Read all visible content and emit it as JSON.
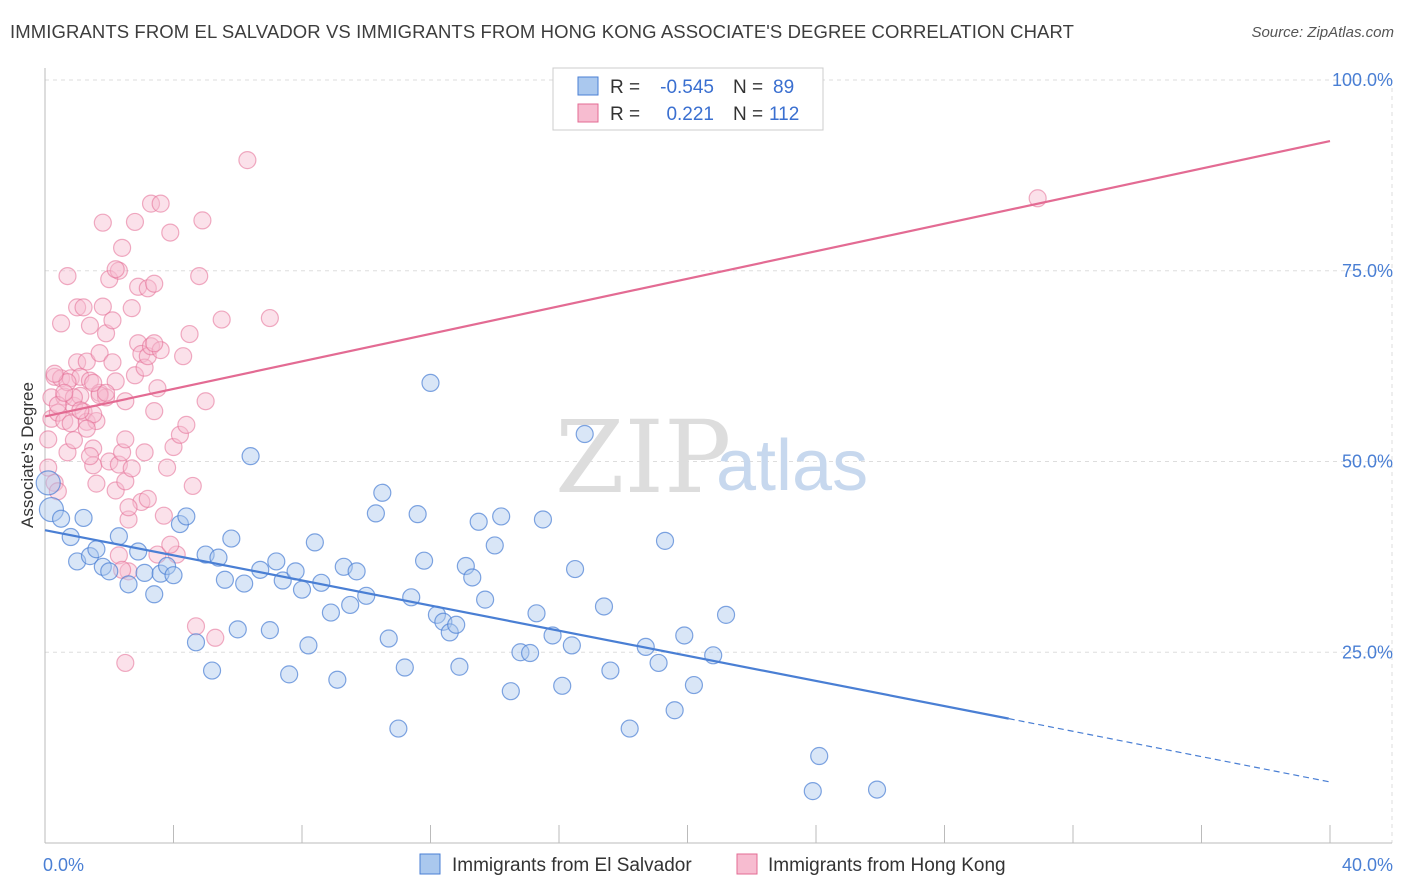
{
  "title": "IMMIGRANTS FROM EL SALVADOR VS IMMIGRANTS FROM HONG KONG ASSOCIATE'S DEGREE CORRELATION CHART",
  "source": "Source: ZipAtlas.com",
  "watermark": {
    "zip": "ZIP",
    "atlas": "atlas"
  },
  "colors": {
    "blue": "#4a7fd4",
    "blue_fill": "#aac8ee",
    "pink": "#e36b93",
    "pink_fill": "#f7bcd0",
    "grid": "#dddddd"
  },
  "legend": {
    "rows": [
      {
        "r_label": "R =",
        "r_value": "-0.545",
        "n_label": "N =",
        "n_value": "89"
      },
      {
        "r_label": "R =",
        "r_value": "0.221",
        "n_label": "N =",
        "n_value": "112"
      }
    ]
  },
  "bottom_legend": [
    "Immigrants from El Salvador",
    "Immigrants from Hong Kong"
  ],
  "chart_data": {
    "type": "scatter",
    "title": "IMMIGRANTS FROM EL SALVADOR VS IMMIGRANTS FROM HONG KONG ASSOCIATE'S DEGREE CORRELATION CHART",
    "xlabel": "",
    "ylabel": "Associate's Degree",
    "xlim": [
      0,
      40
    ],
    "ylim": [
      0,
      100
    ],
    "x_tick_labels": [
      "0.0%",
      "40.0%"
    ],
    "y_ticks": [
      25,
      50,
      75,
      100
    ],
    "y_tick_labels": [
      "25.0%",
      "50.0%",
      "75.0%",
      "100.0%"
    ],
    "grid": true,
    "legend_position": "top-center",
    "series": [
      {
        "name": "Immigrants from El Salvador",
        "color": "#4a7fd4",
        "trend": {
          "x0": 0,
          "y0": 41.0,
          "x1": 30.0,
          "y1": 16.3,
          "dash_to_x": 40,
          "dash_to_y": 8.0
        },
        "points": [
          [
            0.1,
            47.2
          ],
          [
            0.2,
            43.7
          ],
          [
            0.5,
            42.5
          ],
          [
            0.8,
            40.1
          ],
          [
            1.0,
            36.9
          ],
          [
            1.2,
            42.6
          ],
          [
            1.4,
            37.6
          ],
          [
            1.6,
            38.5
          ],
          [
            1.8,
            36.2
          ],
          [
            2.0,
            35.6
          ],
          [
            2.3,
            40.2
          ],
          [
            2.6,
            33.9
          ],
          [
            2.9,
            38.2
          ],
          [
            3.1,
            35.4
          ],
          [
            3.4,
            32.6
          ],
          [
            3.6,
            35.3
          ],
          [
            3.8,
            36.3
          ],
          [
            4.0,
            35.1
          ],
          [
            4.2,
            41.8
          ],
          [
            4.4,
            42.8
          ],
          [
            4.7,
            26.3
          ],
          [
            5.0,
            37.8
          ],
          [
            5.2,
            22.6
          ],
          [
            5.4,
            37.4
          ],
          [
            5.6,
            34.5
          ],
          [
            5.8,
            39.9
          ],
          [
            6.0,
            28.0
          ],
          [
            6.2,
            34.0
          ],
          [
            6.4,
            50.7
          ],
          [
            6.7,
            35.8
          ],
          [
            7.0,
            27.9
          ],
          [
            7.2,
            36.9
          ],
          [
            7.4,
            34.4
          ],
          [
            7.6,
            22.1
          ],
          [
            7.8,
            35.6
          ],
          [
            8.0,
            33.2
          ],
          [
            8.2,
            25.9
          ],
          [
            8.4,
            39.4
          ],
          [
            8.6,
            34.1
          ],
          [
            8.9,
            30.2
          ],
          [
            9.1,
            21.4
          ],
          [
            9.3,
            36.2
          ],
          [
            9.5,
            31.2
          ],
          [
            9.7,
            35.6
          ],
          [
            10.0,
            32.4
          ],
          [
            10.3,
            43.2
          ],
          [
            10.5,
            45.9
          ],
          [
            10.7,
            26.8
          ],
          [
            11.0,
            15.0
          ],
          [
            11.2,
            23.0
          ],
          [
            11.4,
            32.2
          ],
          [
            11.6,
            43.1
          ],
          [
            11.8,
            37.0
          ],
          [
            12.0,
            60.3
          ],
          [
            12.2,
            29.9
          ],
          [
            12.4,
            29.0
          ],
          [
            12.6,
            27.6
          ],
          [
            12.9,
            23.1
          ],
          [
            13.1,
            36.3
          ],
          [
            13.3,
            34.8
          ],
          [
            13.5,
            42.1
          ],
          [
            13.7,
            31.9
          ],
          [
            14.0,
            39.0
          ],
          [
            14.2,
            42.8
          ],
          [
            14.5,
            19.9
          ],
          [
            14.8,
            25.0
          ],
          [
            15.1,
            24.9
          ],
          [
            15.3,
            30.1
          ],
          [
            15.5,
            42.4
          ],
          [
            15.8,
            27.2
          ],
          [
            16.1,
            20.6
          ],
          [
            16.4,
            25.9
          ],
          [
            16.5,
            35.9
          ],
          [
            16.8,
            53.6
          ],
          [
            17.4,
            31.0
          ],
          [
            17.6,
            22.6
          ],
          [
            18.2,
            15.0
          ],
          [
            18.7,
            25.7
          ],
          [
            19.1,
            23.6
          ],
          [
            19.3,
            39.6
          ],
          [
            19.6,
            17.4
          ],
          [
            19.9,
            27.2
          ],
          [
            20.2,
            20.7
          ],
          [
            20.8,
            24.6
          ],
          [
            21.2,
            29.9
          ],
          [
            23.9,
            6.8
          ],
          [
            24.1,
            11.4
          ],
          [
            25.9,
            7.0
          ],
          [
            12.8,
            28.6
          ]
        ]
      },
      {
        "name": "Immigrants from Hong Kong",
        "color": "#e36b93",
        "trend": {
          "x0": 0,
          "y0": 55.9,
          "x1": 40,
          "y1": 92.0
        },
        "points": [
          [
            0.1,
            49.2
          ],
          [
            0.1,
            52.9
          ],
          [
            0.2,
            55.6
          ],
          [
            0.2,
            58.4
          ],
          [
            0.3,
            61.1
          ],
          [
            0.3,
            47.2
          ],
          [
            0.4,
            56.4
          ],
          [
            0.4,
            46.1
          ],
          [
            0.5,
            68.1
          ],
          [
            0.5,
            60.9
          ],
          [
            0.6,
            55.3
          ],
          [
            0.6,
            58.5
          ],
          [
            0.7,
            51.2
          ],
          [
            0.7,
            74.3
          ],
          [
            0.8,
            60.9
          ],
          [
            0.8,
            55.0
          ],
          [
            0.9,
            57.3
          ],
          [
            0.9,
            52.8
          ],
          [
            1.0,
            63.0
          ],
          [
            1.0,
            70.2
          ],
          [
            1.1,
            58.6
          ],
          [
            1.1,
            61.1
          ],
          [
            1.2,
            56.5
          ],
          [
            1.2,
            70.2
          ],
          [
            1.3,
            63.1
          ],
          [
            1.3,
            55.2
          ],
          [
            1.4,
            67.8
          ],
          [
            1.4,
            60.6
          ],
          [
            1.5,
            51.7
          ],
          [
            1.5,
            49.5
          ],
          [
            1.6,
            47.1
          ],
          [
            1.6,
            55.3
          ],
          [
            1.7,
            59.0
          ],
          [
            1.7,
            64.2
          ],
          [
            1.8,
            70.3
          ],
          [
            1.8,
            81.3
          ],
          [
            1.9,
            58.4
          ],
          [
            1.9,
            66.8
          ],
          [
            2.0,
            50.0
          ],
          [
            2.0,
            73.9
          ],
          [
            2.1,
            68.5
          ],
          [
            2.1,
            63.0
          ],
          [
            2.2,
            46.2
          ],
          [
            2.2,
            60.5
          ],
          [
            2.3,
            49.6
          ],
          [
            2.3,
            75.0
          ],
          [
            2.4,
            51.2
          ],
          [
            2.4,
            78.0
          ],
          [
            2.5,
            47.4
          ],
          [
            2.5,
            57.9
          ],
          [
            2.6,
            42.4
          ],
          [
            2.6,
            35.6
          ],
          [
            2.7,
            49.1
          ],
          [
            2.7,
            70.1
          ],
          [
            2.8,
            61.3
          ],
          [
            2.8,
            81.4
          ],
          [
            2.9,
            65.5
          ],
          [
            2.9,
            72.9
          ],
          [
            3.0,
            64.1
          ],
          [
            3.0,
            44.7
          ],
          [
            3.1,
            51.2
          ],
          [
            3.1,
            62.3
          ],
          [
            3.2,
            63.8
          ],
          [
            3.2,
            72.7
          ],
          [
            3.3,
            65.1
          ],
          [
            3.3,
            83.8
          ],
          [
            3.4,
            73.3
          ],
          [
            3.4,
            56.6
          ],
          [
            3.5,
            59.6
          ],
          [
            3.5,
            37.8
          ],
          [
            3.6,
            64.6
          ],
          [
            3.6,
            83.8
          ],
          [
            3.7,
            42.9
          ],
          [
            3.8,
            49.2
          ],
          [
            3.9,
            80.0
          ],
          [
            4.0,
            51.9
          ],
          [
            4.1,
            37.8
          ],
          [
            4.2,
            53.5
          ],
          [
            4.3,
            63.8
          ],
          [
            4.4,
            54.8
          ],
          [
            4.5,
            66.7
          ],
          [
            4.6,
            46.8
          ],
          [
            4.7,
            28.4
          ],
          [
            4.8,
            74.3
          ],
          [
            4.9,
            81.6
          ],
          [
            5.0,
            57.9
          ],
          [
            5.3,
            26.9
          ],
          [
            5.5,
            68.6
          ],
          [
            6.3,
            89.5
          ],
          [
            7.0,
            68.8
          ],
          [
            1.5,
            56.2
          ],
          [
            1.7,
            58.7
          ],
          [
            0.7,
            60.4
          ],
          [
            0.9,
            58.4
          ],
          [
            1.1,
            56.7
          ],
          [
            1.3,
            54.3
          ],
          [
            0.4,
            57.4
          ],
          [
            0.6,
            59.0
          ],
          [
            2.5,
            52.9
          ],
          [
            1.4,
            50.7
          ],
          [
            3.4,
            65.5
          ],
          [
            2.2,
            75.2
          ],
          [
            2.6,
            44.0
          ],
          [
            2.3,
            37.7
          ],
          [
            3.2,
            45.1
          ],
          [
            3.9,
            39.1
          ],
          [
            1.5,
            60.3
          ],
          [
            2.4,
            35.8
          ],
          [
            2.5,
            23.6
          ],
          [
            30.9,
            84.5
          ],
          [
            0.3,
            61.5
          ],
          [
            1.9,
            59.0
          ]
        ]
      }
    ]
  }
}
